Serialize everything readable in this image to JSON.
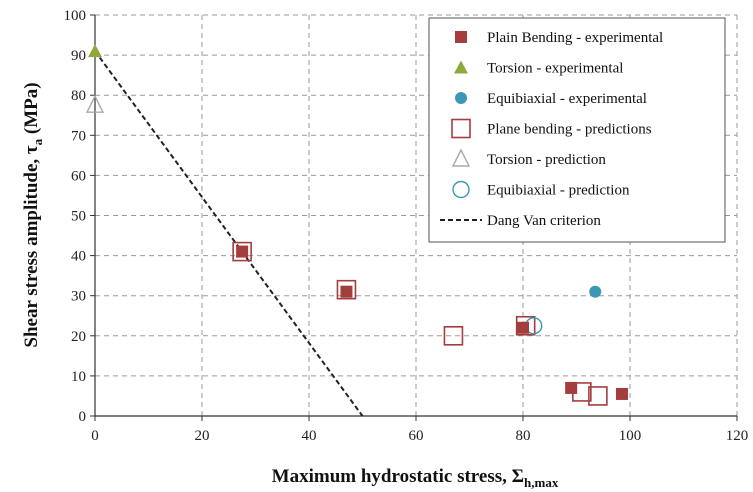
{
  "chart_data": {
    "type": "scatter",
    "xlabel": "Maximum hydrostatic stress, Σ",
    "xlabel_sub": "h,max",
    "ylabel": "Shear stress amplitude, τ",
    "ylabel_sub": "a",
    "ylabel_unit": " (MPa)",
    "xlim": [
      0,
      120
    ],
    "ylim": [
      0,
      100
    ],
    "x_ticks": [
      "0",
      "20",
      "40",
      "60",
      "80",
      "100",
      "120"
    ],
    "y_ticks": [
      "0",
      "10",
      "20",
      "30",
      "40",
      "50",
      "60",
      "70",
      "80",
      "90",
      "100"
    ],
    "grid": true,
    "legend_position": "top-right",
    "colors": {
      "bending": "#a43d3d",
      "torsion": "#8fa83c",
      "equibiaxial": "#3d96b8",
      "prediction_torsion": "#a9a9a9",
      "line": "#222222"
    },
    "series": [
      {
        "name": "Plain Bending - experimental",
        "marker": "square-filled",
        "color_key": "bending",
        "points": [
          [
            27.5,
            41
          ],
          [
            47,
            31
          ],
          [
            80,
            22
          ],
          [
            89,
            7
          ],
          [
            98.5,
            5.5
          ]
        ]
      },
      {
        "name": "Torsion - experimental",
        "marker": "triangle-filled",
        "color_key": "torsion",
        "points": [
          [
            0,
            91
          ]
        ]
      },
      {
        "name": "Equibiaxial - experimental",
        "marker": "circle-filled",
        "color_key": "equibiaxial",
        "points": [
          [
            93.5,
            31
          ]
        ]
      },
      {
        "name": "Plane bending - predictions",
        "marker": "square-open",
        "color_key": "bending",
        "points": [
          [
            27.5,
            41
          ],
          [
            47,
            31.5
          ],
          [
            67,
            20
          ],
          [
            80.5,
            22.5
          ],
          [
            91,
            6
          ],
          [
            94,
            5
          ]
        ]
      },
      {
        "name": "Torsion - prediction",
        "marker": "triangle-open",
        "color_key": "prediction_torsion",
        "points": [
          [
            0,
            77.5
          ]
        ]
      },
      {
        "name": "Equibiaxial - prediction",
        "marker": "circle-open",
        "color_key": "equibiaxial",
        "points": [
          [
            82,
            22.5
          ]
        ]
      },
      {
        "name": "Dang Van criterion",
        "marker": "dashed-line",
        "color_key": "line",
        "points": [
          [
            0,
            91
          ],
          [
            50,
            0
          ]
        ]
      }
    ]
  }
}
